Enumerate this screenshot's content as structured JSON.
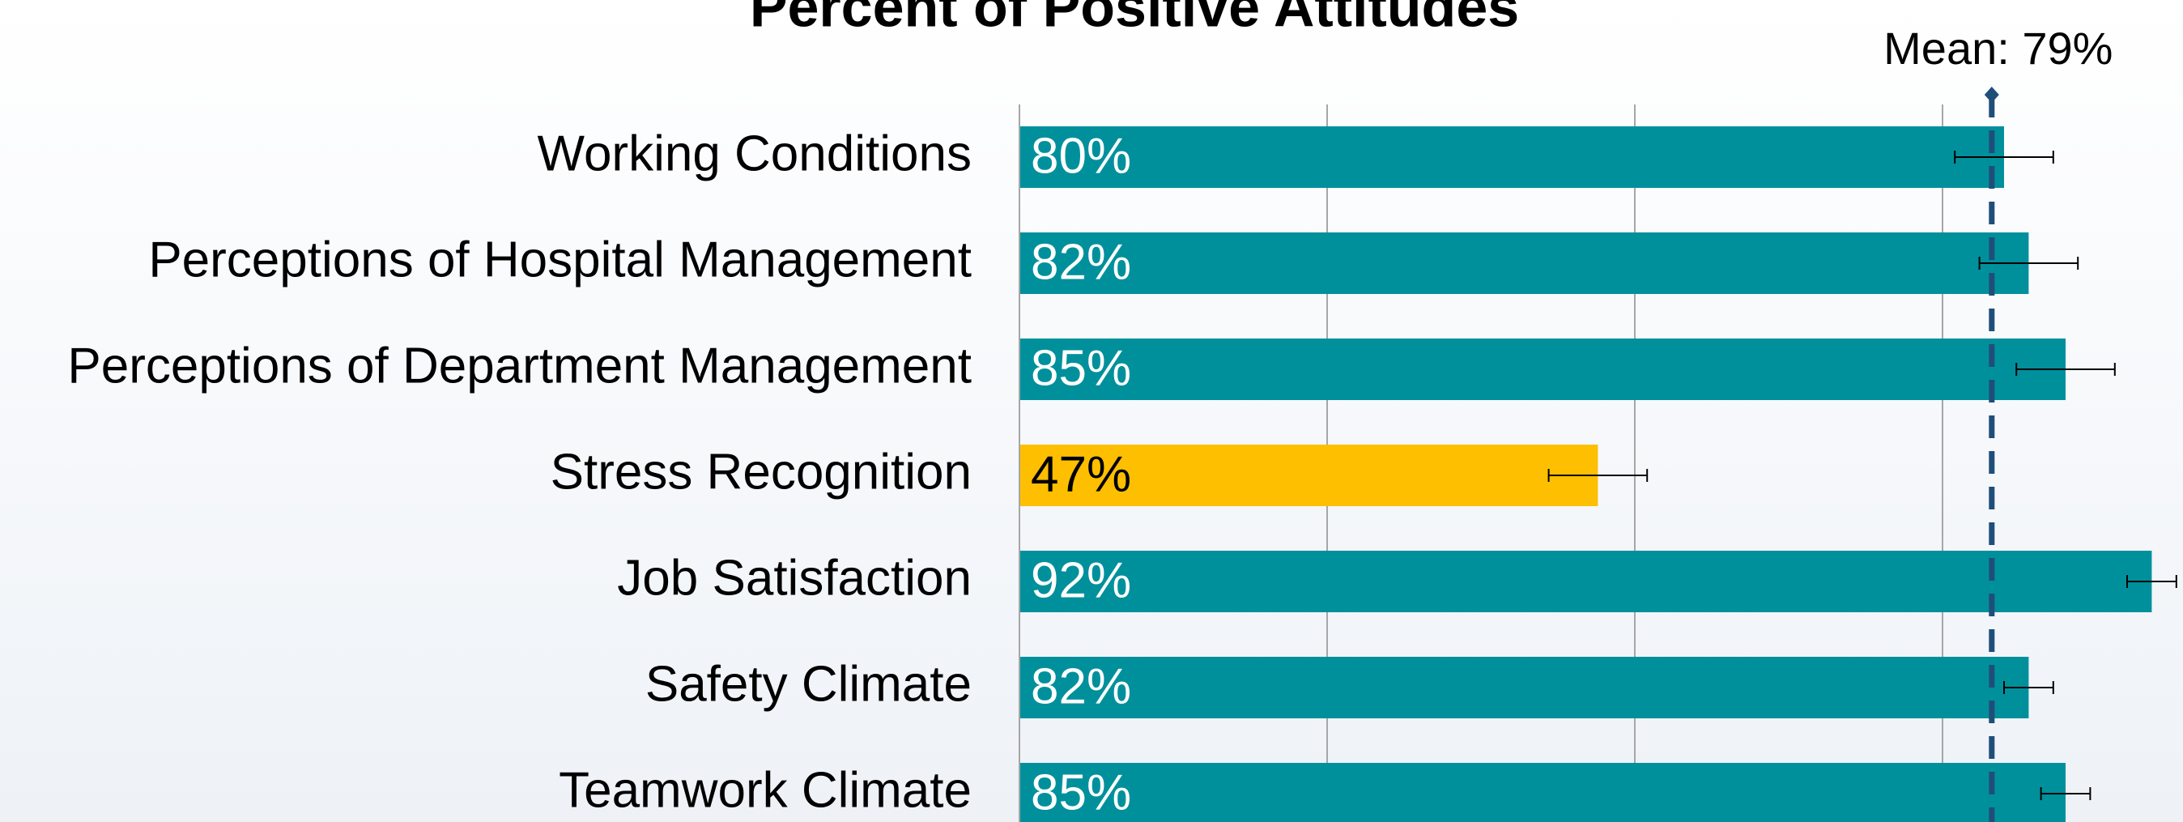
{
  "chart_data": {
    "type": "hbar",
    "title": "Percent of Positive Attitudes",
    "categories": [
      "Working Conditions",
      "Perceptions of Hospital Management",
      "Perceptions of Department Management",
      "Stress Recognition",
      "Job Satisfaction",
      "Safety Climate",
      "Teamwork Climate"
    ],
    "values": [
      80,
      82,
      85,
      47,
      92,
      82,
      85
    ],
    "value_labels": [
      "80%",
      "82%",
      "85%",
      "47%",
      "92%",
      "82%",
      "85%"
    ],
    "errors": [
      4,
      4,
      4,
      4,
      2,
      2,
      2
    ],
    "colors": [
      "#00909c",
      "#00909c",
      "#00909c",
      "#fdbf00",
      "#00909c",
      "#00909c",
      "#00909c"
    ],
    "label_colors": [
      "#ffffff",
      "#ffffff",
      "#ffffff",
      "#000000",
      "#ffffff",
      "#ffffff",
      "#ffffff"
    ],
    "xlim": [
      0,
      100
    ],
    "xticks": [
      0,
      25,
      50,
      75
    ],
    "grid": true,
    "mean": {
      "value": 79,
      "label": "Mean: 79%",
      "color": "#1f4e79"
    }
  }
}
